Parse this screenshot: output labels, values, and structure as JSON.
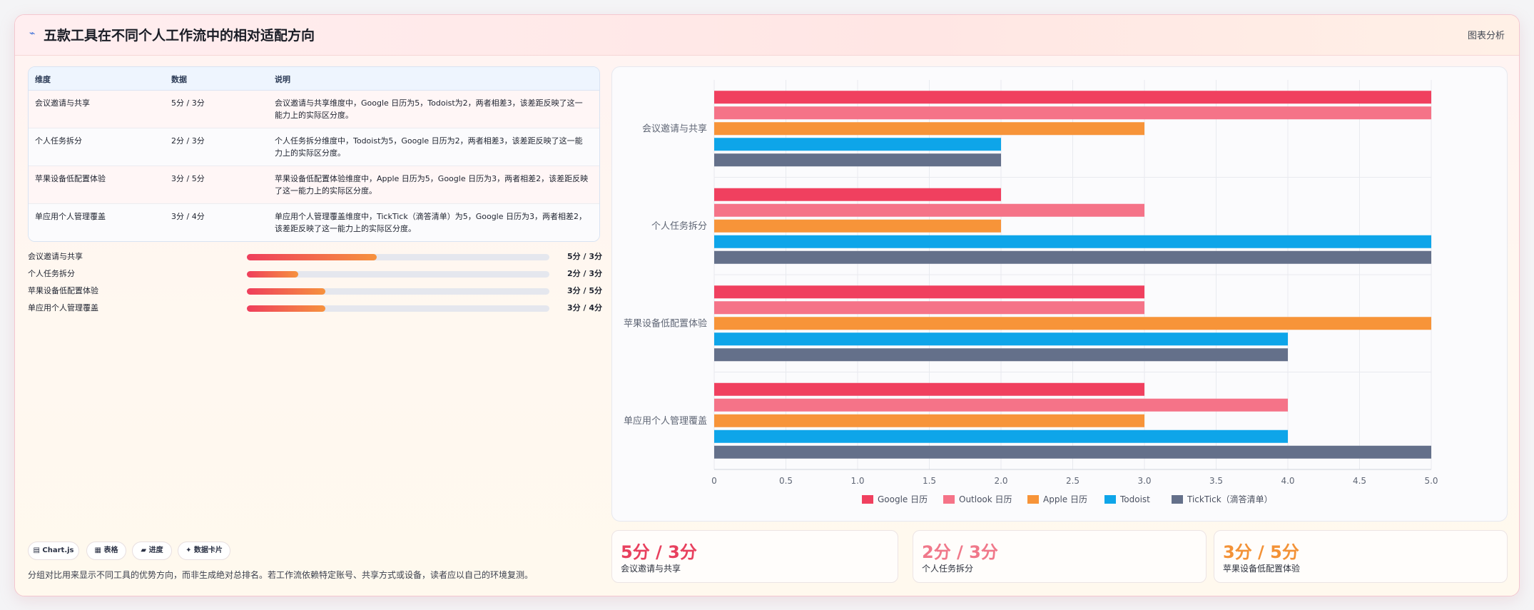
{
  "header": {
    "title": "五款工具在不同个人工作流中的相对适配方向",
    "action": "图表分析"
  },
  "table": {
    "headers": [
      "维度",
      "数据",
      "说明"
    ],
    "rows": [
      {
        "dim": "会议邀请与共享",
        "data": "5分 / 3分",
        "desc": "会议邀请与共享维度中，Google 日历为5，Todoist为2，两者相差3，该差距反映了这一能力上的实际区分度。"
      },
      {
        "dim": "个人任务拆分",
        "data": "2分 / 3分",
        "desc": "个人任务拆分维度中，Todoist为5，Google 日历为2，两者相差3，该差距反映了这一能力上的实际区分度。"
      },
      {
        "dim": "苹果设备低配置体验",
        "data": "3分 / 5分",
        "desc": "苹果设备低配置体验维度中，Apple 日历为5，Google 日历为3，两者相差2，该差距反映了这一能力上的实际区分度。"
      },
      {
        "dim": "单应用个人管理覆盖",
        "data": "3分 / 4分",
        "desc": "单应用个人管理覆盖维度中，TickTick（滴答清单）为5，Google 日历为3，两者相差2，该差距反映了这一能力上的实际区分度。"
      }
    ]
  },
  "progress": [
    {
      "label": "会议邀请与共享",
      "value": "5分 / 3分",
      "fill": 0.43
    },
    {
      "label": "个人任务拆分",
      "value": "2分 / 3分",
      "fill": 0.17
    },
    {
      "label": "苹果设备低配置体验",
      "value": "3分 / 5分",
      "fill": 0.26
    },
    {
      "label": "单应用个人管理覆盖",
      "value": "3分 / 4分",
      "fill": 0.26
    }
  ],
  "tags": [
    "▤ Chart.js",
    "▦ 表格",
    "▰ 进度",
    "✦ 数据卡片"
  ],
  "footer_note": "分组对比用来显示不同工具的优势方向，而非生成绝对总排名。若工作流依赖特定账号、共享方式或设备，读者应以自己的环境复测。",
  "stats": [
    {
      "value": "5分 / 3分",
      "label": "会议邀请与共享",
      "color": "#e8405e"
    },
    {
      "value": "2分 / 3分",
      "label": "个人任务拆分",
      "color": "#f0788a"
    },
    {
      "value": "3分 / 5分",
      "label": "苹果设备低配置体验",
      "color": "#f39237"
    }
  ],
  "chart_data": {
    "type": "bar",
    "orientation": "horizontal",
    "categories": [
      "会议邀请与共享",
      "个人任务拆分",
      "苹果设备低配置体验",
      "单应用个人管理覆盖"
    ],
    "series": [
      {
        "name": "Google 日历",
        "color": "#f0405f",
        "values": [
          5,
          2,
          3,
          3
        ]
      },
      {
        "name": "Outlook 日历",
        "color": "#f57388",
        "values": [
          5,
          3,
          3,
          4
        ]
      },
      {
        "name": "Apple 日历",
        "color": "#f79439",
        "values": [
          3,
          2,
          5,
          3
        ]
      },
      {
        "name": "Todoist",
        "color": "#0ea5e9",
        "values": [
          2,
          5,
          4,
          4
        ]
      },
      {
        "name": "TickTick（滴答清单）",
        "color": "#64708a",
        "values": [
          2,
          5,
          4,
          5
        ]
      }
    ],
    "xlim": [
      0,
      5
    ],
    "xticks": [
      "0",
      "0.5",
      "1.0",
      "1.5",
      "2.0",
      "2.5",
      "3.0",
      "3.5",
      "4.0",
      "4.5",
      "5.0"
    ],
    "grid": true,
    "legend": "bottom"
  }
}
